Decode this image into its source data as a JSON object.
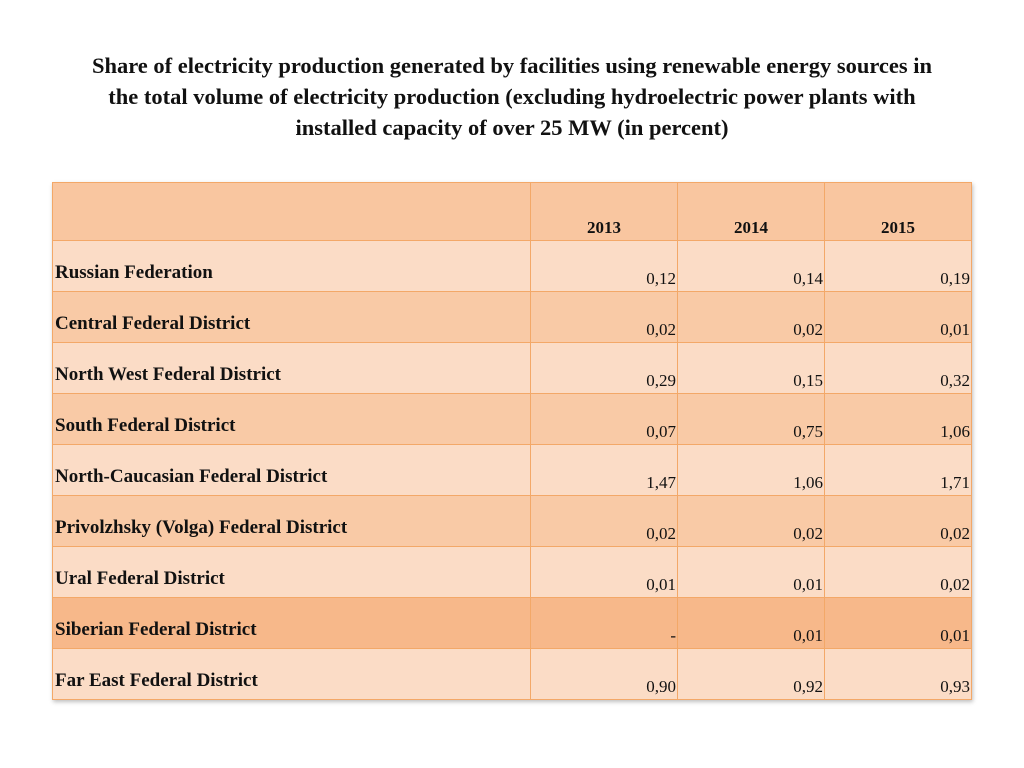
{
  "header": {
    "title": "Share of electricity production generated by facilities using renewable energy sources in the total volume of electricity production (excluding hydroelectric power plants with installed capacity of over 25 MW (in percent)"
  },
  "table": {
    "columns": [
      "2013",
      "2014",
      "2015"
    ],
    "rows": [
      {
        "label": "Russian Federation",
        "values": [
          "0,12",
          "0,14",
          "0,19"
        ]
      },
      {
        "label": "Central Federal District",
        "values": [
          "0,02",
          "0,02",
          "0,01"
        ]
      },
      {
        "label": "North West Federal District",
        "values": [
          "0,29",
          "0,15",
          "0,32"
        ]
      },
      {
        "label": "South Federal District",
        "values": [
          "0,07",
          "0,75",
          "1,06"
        ]
      },
      {
        "label": "North-Caucasian Federal District",
        "values": [
          "1,47",
          "1,06",
          "1,71"
        ]
      },
      {
        "label": "Privolzhsky (Volga) Federal District",
        "values": [
          "0,02",
          "0,02",
          "0,02"
        ]
      },
      {
        "label": "Ural Federal District",
        "values": [
          "0,01",
          "0,01",
          "0,02"
        ]
      },
      {
        "label": "Siberian Federal District",
        "values": [
          "-",
          "0,01",
          "0,01"
        ]
      },
      {
        "label": "Far East Federal District",
        "values": [
          "0,90",
          "0,92",
          "0,93"
        ]
      }
    ]
  }
}
